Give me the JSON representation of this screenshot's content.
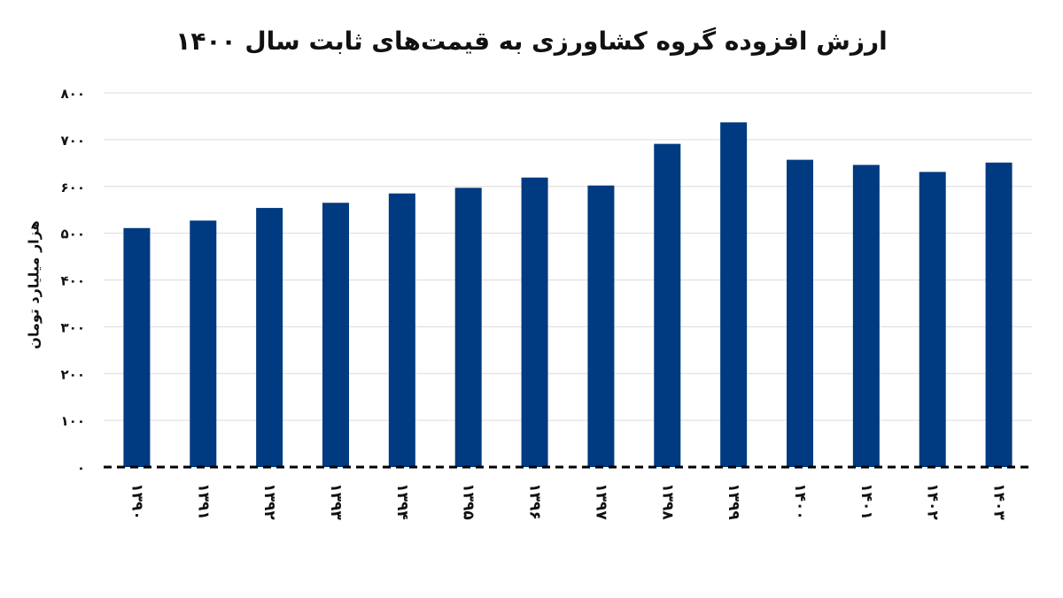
{
  "chart_data": {
    "type": "bar",
    "title": "ارزش افزوده گروه کشاورزی به قیمت‌های ثابت سال ۱۴۰۰",
    "ylabel": "هزار میلیارد تومان",
    "xlabel": "",
    "categories": [
      "۱۳۹۰",
      "۱۳۹۱",
      "۱۳۹۲",
      "۱۳۹۳",
      "۱۳۹۴",
      "۱۳۹۵",
      "۱۳۹۶",
      "۱۳۹۷",
      "۱۳۹۸",
      "۱۳۹۹",
      "۱۴۰۰",
      "۱۴۰۱",
      "۱۴۰۲",
      "۱۴۰۳"
    ],
    "values": [
      511,
      527,
      554,
      565,
      585,
      597,
      619,
      602,
      691,
      737,
      657,
      646,
      631,
      651
    ],
    "ylim": [
      0,
      800
    ],
    "yticks": [
      0,
      100,
      200,
      300,
      400,
      500,
      600,
      700,
      800
    ],
    "ytick_labels": [
      "۰",
      "۱۰۰",
      "۲۰۰",
      "۳۰۰",
      "۴۰۰",
      "۵۰۰",
      "۶۰۰",
      "۷۰۰",
      "۸۰۰"
    ],
    "grid": true,
    "bar_color": "#003A80",
    "baseline_style": "dashed"
  }
}
